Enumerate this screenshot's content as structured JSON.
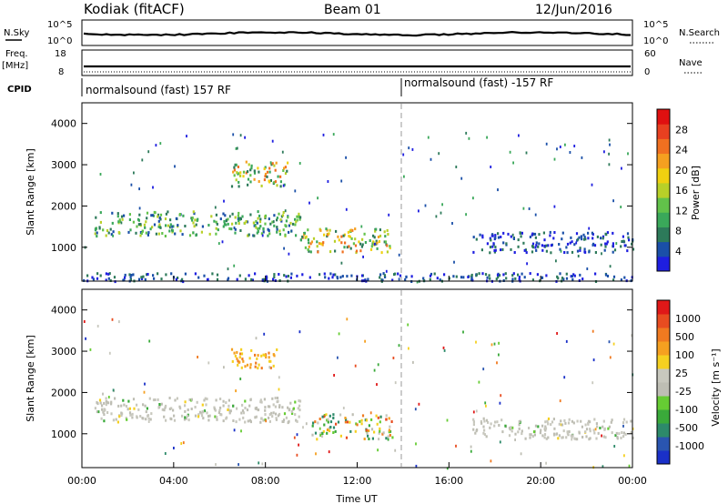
{
  "header": {
    "station": "Kodiak (fitACF)",
    "beam": "Beam 01",
    "date": "12/Jun/2016"
  },
  "strips": {
    "nsky_label": "N.Sky",
    "nsearch_label": "N.Search",
    "nsky_ticks": [
      "10^5",
      "10^0"
    ],
    "nsearch_ticks": [
      "10^5",
      "10^0"
    ],
    "freq_label_1": "Freq.",
    "freq_label_2": "[MHz]",
    "freq_ticks": [
      "18",
      "8"
    ],
    "nave_label": "Nave",
    "nave_ticks": [
      "60",
      "0"
    ],
    "cpid_label": "CPID",
    "cpid_segments": [
      "normalsound (fast) 157 RF",
      "normalsound (fast) -157 RF"
    ]
  },
  "colorbars": {
    "power": {
      "label": "Power [dB]",
      "ticks": [
        "28",
        "24",
        "20",
        "16",
        "12",
        "8",
        "4"
      ],
      "colors": [
        "#1e1ee0",
        "#1a4fa8",
        "#2d7a5a",
        "#3aa85a",
        "#62c24a",
        "#b8d028",
        "#f0d010",
        "#f5a020",
        "#f07020",
        "#e84020",
        "#e01010"
      ]
    },
    "velocity": {
      "label": "Velocity [m s⁻¹]",
      "ticks": [
        "1000",
        "500",
        "100",
        "25",
        "-25",
        "-100",
        "-500",
        "-1000"
      ],
      "colors": [
        "#1a30c8",
        "#2a55b0",
        "#2d8a6a",
        "#3aaa3a",
        "#66cc33",
        "#bebeb4",
        "#c8c8be",
        "#f5d020",
        "#f5a020",
        "#f07a20",
        "#e84c20",
        "#e01818"
      ]
    }
  },
  "chart_data": [
    {
      "type": "heatmap",
      "name": "power-panel",
      "ylabel": "Slant Range [km]",
      "yticks": [
        "4000",
        "3000",
        "2000",
        "1000"
      ],
      "ylim": [
        180,
        4500
      ],
      "xlim": [
        0,
        24
      ],
      "xticks": [
        "00:00",
        "04:00",
        "08:00",
        "12:00",
        "16:00",
        "20:00",
        "00:00"
      ],
      "cpid_change_hour": 14.0,
      "colorbar": "power",
      "regions": [
        {
          "t0": 0.5,
          "t1": 9.5,
          "r0": 1300,
          "r1": 1900,
          "level": "mid"
        },
        {
          "t0": 6.5,
          "t1": 9.0,
          "r0": 2500,
          "r1": 3100,
          "level": "high"
        },
        {
          "t0": 9.5,
          "t1": 13.5,
          "r0": 900,
          "r1": 1500,
          "level": "high"
        },
        {
          "t0": 17.0,
          "t1": 24.0,
          "r0": 900,
          "r1": 1400,
          "level": "low"
        },
        {
          "t0": 0.0,
          "t1": 24.0,
          "r0": 200,
          "r1": 400,
          "level": "low"
        }
      ]
    },
    {
      "type": "heatmap",
      "name": "velocity-panel",
      "xlabel": "Time UT",
      "ylabel": "Slant Range [km]",
      "yticks": [
        "4000",
        "3000",
        "2000",
        "1000"
      ],
      "ylim": [
        180,
        4500
      ],
      "xlim": [
        0,
        24
      ],
      "xticks": [
        "00:00",
        "04:00",
        "08:00",
        "12:00",
        "16:00",
        "20:00",
        "00:00"
      ],
      "cpid_change_hour": 14.0,
      "colorbar": "velocity",
      "regions": [
        {
          "t0": 0.5,
          "t1": 9.5,
          "r0": 1300,
          "r1": 1900,
          "level": "ground"
        },
        {
          "t0": 6.5,
          "t1": 8.5,
          "r0": 2600,
          "r1": 3100,
          "level": "away"
        },
        {
          "t0": 10.0,
          "t1": 13.5,
          "r0": 900,
          "r1": 1500,
          "level": "mixed"
        },
        {
          "t0": 17.0,
          "t1": 24.0,
          "r0": 900,
          "r1": 1400,
          "level": "ground"
        }
      ]
    }
  ]
}
